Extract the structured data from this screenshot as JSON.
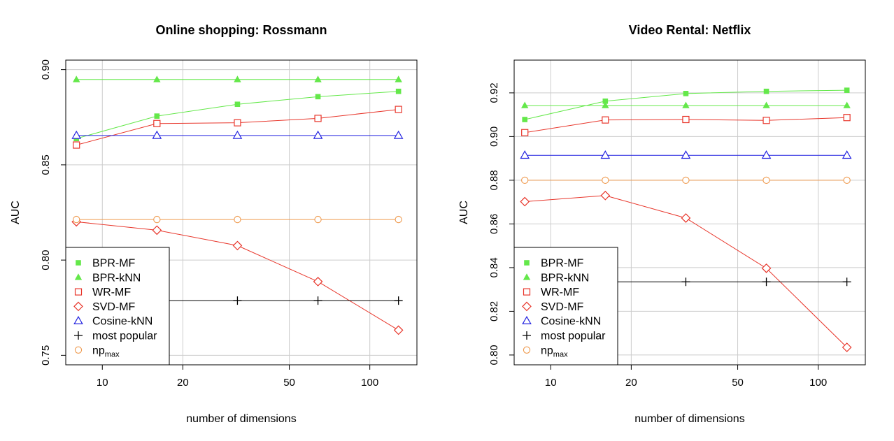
{
  "chart_data": [
    {
      "type": "line",
      "title": "Online shopping: Rossmann",
      "xlabel": "number of dimensions",
      "ylabel": "AUC",
      "xscale": "log",
      "xlim": [
        7.3,
        150
      ],
      "ylim": [
        0.745,
        0.905
      ],
      "xticks": [
        10,
        20,
        50,
        100
      ],
      "xtick_labels": [
        "10",
        "20",
        "50",
        "100"
      ],
      "yticks": [
        0.75,
        0.8,
        0.85,
        0.9
      ],
      "ytick_labels": [
        "0.75",
        "0.80",
        "0.85",
        "0.90"
      ],
      "grid": true,
      "legend_position": "bottom-left",
      "x": [
        8,
        16,
        32,
        64,
        128
      ],
      "series": [
        {
          "name": "BPR-MF",
          "key": "bpr_mf",
          "values": [
            0.8638,
            0.8756,
            0.8818,
            0.8858,
            0.8886
          ]
        },
        {
          "name": "BPR-kNN",
          "key": "bpr_knn",
          "values": [
            0.8948,
            0.8948,
            0.8948,
            0.8948,
            0.8948
          ]
        },
        {
          "name": "WR-MF",
          "key": "wr_mf",
          "values": [
            0.8604,
            0.8717,
            0.8721,
            0.8744,
            0.8791
          ]
        },
        {
          "name": "SVD-MF",
          "key": "svd_mf",
          "values": [
            0.8201,
            0.8157,
            0.8076,
            0.7887,
            0.7632
          ]
        },
        {
          "name": "Cosine-kNN",
          "key": "cosine_knn",
          "values": [
            0.8654,
            0.8654,
            0.8654,
            0.8654,
            0.8654
          ]
        },
        {
          "name": "most popular",
          "key": "most_popular",
          "values": [
            0.7787,
            0.7787,
            0.7787,
            0.7787,
            0.7787
          ]
        },
        {
          "name": "np",
          "sub": "max",
          "key": "np_max",
          "values": [
            0.8213,
            0.8213,
            0.8213,
            0.8213,
            0.8213
          ]
        }
      ]
    },
    {
      "type": "line",
      "title": "Video Rental: Netflix",
      "xlabel": "number of dimensions",
      "ylabel": "AUC",
      "xscale": "log",
      "xlim": [
        7.3,
        150
      ],
      "ylim": [
        0.7955,
        0.935
      ],
      "xticks": [
        10,
        20,
        50,
        100
      ],
      "xtick_labels": [
        "10",
        "20",
        "50",
        "100"
      ],
      "yticks": [
        0.8,
        0.82,
        0.84,
        0.86,
        0.88,
        0.9,
        0.92
      ],
      "ytick_labels": [
        "0.80",
        "0.82",
        "0.84",
        "0.86",
        "0.88",
        "0.90",
        "0.92"
      ],
      "grid": true,
      "legend_position": "bottom-left",
      "x": [
        8,
        16,
        32,
        64,
        128
      ],
      "series": [
        {
          "name": "BPR-MF",
          "key": "bpr_mf",
          "values": [
            0.9078,
            0.9162,
            0.9197,
            0.9207,
            0.9212
          ]
        },
        {
          "name": "BPR-kNN",
          "key": "bpr_knn",
          "values": [
            0.9142,
            0.9142,
            0.9142,
            0.9142,
            0.9142
          ]
        },
        {
          "name": "WR-MF",
          "key": "wr_mf",
          "values": [
            0.9018,
            0.9076,
            0.9078,
            0.9074,
            0.9087
          ]
        },
        {
          "name": "SVD-MF",
          "key": "svd_mf",
          "values": [
            0.8702,
            0.873,
            0.8627,
            0.8397,
            0.8035
          ]
        },
        {
          "name": "Cosine-kNN",
          "key": "cosine_knn",
          "values": [
            0.8914,
            0.8914,
            0.8914,
            0.8914,
            0.8914
          ]
        },
        {
          "name": "most popular",
          "key": "most_popular",
          "values": [
            0.8335,
            0.8335,
            0.8335,
            0.8335,
            0.8335
          ]
        },
        {
          "name": "np",
          "sub": "max",
          "key": "np_max",
          "values": [
            0.88,
            0.88,
            0.88,
            0.88,
            0.88
          ]
        }
      ]
    }
  ],
  "style": {
    "bpr_mf": {
      "color": "#64e84a",
      "marker": "filled-square"
    },
    "bpr_knn": {
      "color": "#64e84a",
      "marker": "filled-triangle"
    },
    "wr_mf": {
      "color": "#e8362b",
      "marker": "open-square"
    },
    "svd_mf": {
      "color": "#e8362b",
      "marker": "open-diamond"
    },
    "cosine_knn": {
      "color": "#2424e0",
      "marker": "open-triangle"
    },
    "most_popular": {
      "color": "#000000",
      "marker": "plus"
    },
    "np_max": {
      "color": "#ef9a4e",
      "marker": "open-circle"
    },
    "grid_color": "#cccccc",
    "frame_color": "#000000"
  }
}
